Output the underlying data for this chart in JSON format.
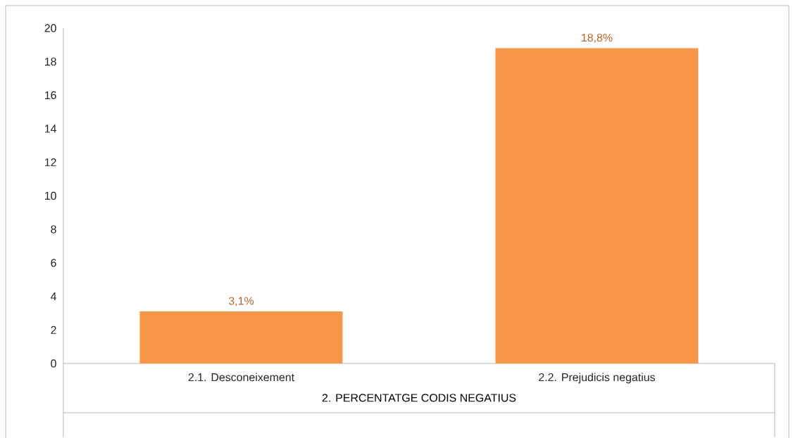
{
  "chart_data": {
    "type": "bar",
    "xlabel": "2. PERCENTATGE CODIS NEGATIUS",
    "categories": [
      "2.1. Desconeixement",
      "2.2. Prejudicis negatius"
    ],
    "values": [
      3.1,
      18.8
    ],
    "value_labels": [
      "3,1%",
      "18,8%"
    ],
    "color": "#f79646",
    "ylim": [
      0,
      20
    ],
    "yticks": [
      0,
      2,
      4,
      6,
      8,
      10,
      12,
      14,
      16,
      18,
      20
    ],
    "grid": false
  }
}
